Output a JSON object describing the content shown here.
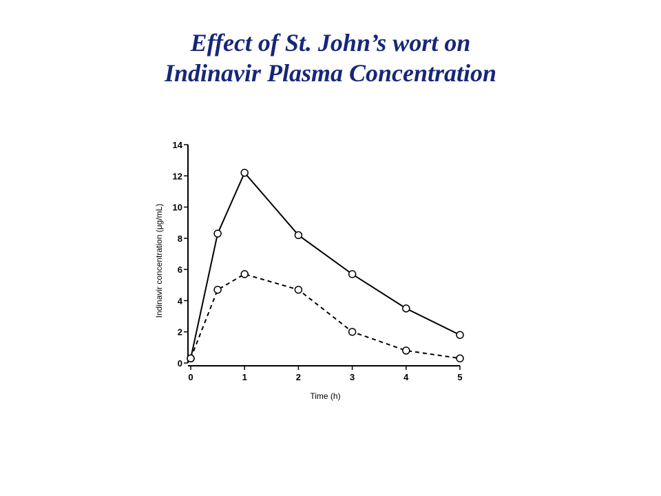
{
  "slide": {
    "title_line1": "Effect of St. John’s wort on",
    "title_line2": "Indinavir Plasma Concentration",
    "title_color": "#16277A"
  },
  "chart_data": {
    "type": "line",
    "xlabel": "Time (h)",
    "ylabel": "Indinavir concentration (μg/mL)",
    "xlim": [
      0,
      5
    ],
    "ylim": [
      0,
      14
    ],
    "x_ticks": [
      0,
      1,
      2,
      3,
      4,
      5
    ],
    "y_ticks": [
      0,
      2,
      4,
      6,
      8,
      10,
      12,
      14
    ],
    "grid": false,
    "series": [
      {
        "line_style": "solid",
        "marker": "open-circle",
        "x": [
          0,
          0.5,
          1,
          2,
          3,
          4,
          5
        ],
        "y": [
          0.3,
          8.3,
          12.2,
          8.2,
          5.7,
          3.5,
          1.8
        ]
      },
      {
        "line_style": "dashed",
        "marker": "open-circle",
        "x": [
          0,
          0.5,
          1,
          2,
          3,
          4,
          5
        ],
        "y": [
          0.3,
          4.7,
          5.7,
          4.7,
          2.0,
          0.8,
          0.3
        ]
      }
    ]
  }
}
